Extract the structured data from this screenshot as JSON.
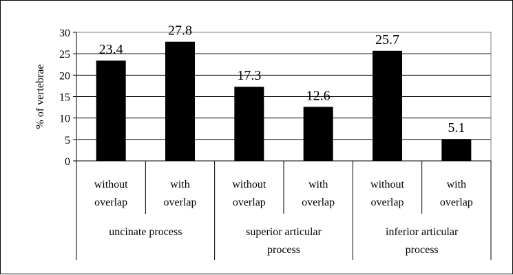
{
  "chart_data": {
    "type": "bar",
    "ylabel": "% of vertebrae",
    "ylim": [
      0,
      30
    ],
    "yticks": [
      0,
      5,
      10,
      15,
      20,
      25,
      30
    ],
    "grid": true,
    "legend": "none",
    "bar_color": "#000000",
    "categories": [
      {
        "label_line1": "without",
        "label_line2": "overlap",
        "group": 0
      },
      {
        "label_line1": "with",
        "label_line2": "overlap",
        "group": 0
      },
      {
        "label_line1": "without",
        "label_line2": "overlap",
        "group": 1
      },
      {
        "label_line1": "with",
        "label_line2": "overlap",
        "group": 1
      },
      {
        "label_line1": "without",
        "label_line2": "overlap",
        "group": 2
      },
      {
        "label_line1": "with",
        "label_line2": "overlap",
        "group": 2
      }
    ],
    "groups": [
      {
        "line1": "uncinate process",
        "line2": ""
      },
      {
        "line1": "superior articular",
        "line2": "process"
      },
      {
        "line1": "inferior articular",
        "line2": "process"
      }
    ],
    "values": [
      23.4,
      27.8,
      17.3,
      12.6,
      25.7,
      5.1
    ],
    "data_labels": [
      "23.4",
      "27.8",
      "17.3",
      "12.6",
      "25.7",
      "5.1"
    ]
  }
}
